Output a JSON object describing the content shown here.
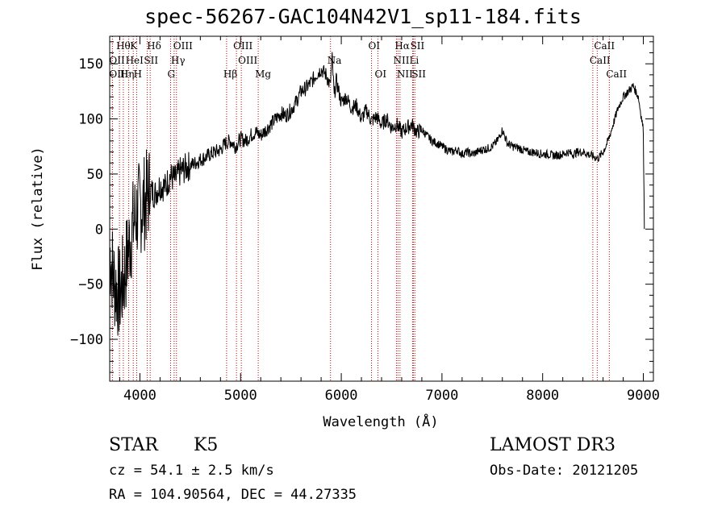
{
  "chart_data": {
    "type": "line",
    "title": "spec-56267-GAC104N42V1_sp11-184.fits",
    "xlabel": "Wavelength (Å)",
    "ylabel": "Flux (relative)",
    "xlim": [
      3700,
      9100
    ],
    "ylim": [
      -138,
      175
    ],
    "xticks": [
      4000,
      5000,
      6000,
      7000,
      8000,
      9000
    ],
    "yticks": [
      -100,
      -50,
      0,
      50,
      100,
      150
    ],
    "series": [
      {
        "name": "flux",
        "x": [
          3700,
          3750,
          3800,
          3850,
          3900,
          3950,
          4000,
          4050,
          4100,
          4150,
          4200,
          4250,
          4300,
          4350,
          4400,
          4450,
          4500,
          4550,
          4600,
          4650,
          4700,
          4750,
          4800,
          4850,
          4900,
          4950,
          5000,
          5050,
          5100,
          5150,
          5200,
          5250,
          5300,
          5350,
          5400,
          5450,
          5500,
          5550,
          5600,
          5650,
          5700,
          5750,
          5800,
          5850,
          5890,
          5910,
          5930,
          5950,
          6000,
          6050,
          6100,
          6150,
          6200,
          6250,
          6300,
          6350,
          6400,
          6450,
          6500,
          6550,
          6600,
          6650,
          6700,
          6750,
          6800,
          6850,
          6900,
          6950,
          7000,
          7050,
          7100,
          7150,
          7200,
          7250,
          7300,
          7350,
          7400,
          7450,
          7500,
          7550,
          7600,
          7650,
          7700,
          7750,
          7800,
          7850,
          7900,
          7950,
          8000,
          8050,
          8100,
          8150,
          8200,
          8250,
          8300,
          8350,
          8400,
          8450,
          8500,
          8550,
          8600,
          8650,
          8700,
          8750,
          8800,
          8850,
          8900,
          8950,
          9000,
          9010
        ],
        "y": [
          -20,
          -50,
          -60,
          -40,
          -10,
          10,
          20,
          25,
          35,
          32,
          40,
          38,
          48,
          45,
          52,
          55,
          58,
          60,
          63,
          65,
          68,
          70,
          72,
          78,
          80,
          75,
          82,
          80,
          85,
          88,
          85,
          90,
          95,
          100,
          105,
          103,
          108,
          115,
          125,
          128,
          133,
          140,
          145,
          140,
          130,
          155,
          120,
          135,
          115,
          120,
          110,
          112,
          100,
          108,
          98,
          102,
          95,
          100,
          92,
          95,
          88,
          92,
          95,
          88,
          90,
          85,
          80,
          78,
          75,
          72,
          70,
          72,
          68,
          70,
          68,
          70,
          72,
          73,
          75,
          80,
          90,
          78,
          75,
          74,
          72,
          70,
          70,
          69,
          68,
          68,
          67,
          67,
          68,
          70,
          68,
          70,
          70,
          68,
          66,
          64,
          70,
          80,
          95,
          110,
          120,
          125,
          130,
          120,
          90,
          0
        ]
      }
    ],
    "lines": [
      {
        "label": "Hθ",
        "x": 3797,
        "row": 0
      },
      {
        "label": "K",
        "x": 3934,
        "row": 0
      },
      {
        "label": "Hδ",
        "x": 4102,
        "row": 0
      },
      {
        "label": "OIII",
        "x": 4363,
        "row": 0
      },
      {
        "label": "OIII",
        "x": 4959,
        "row": 0
      },
      {
        "label": "OI",
        "x": 6300,
        "row": 0
      },
      {
        "label": "Hα",
        "x": 6563,
        "row": 0
      },
      {
        "label": "SII",
        "x": 6717,
        "row": 0
      },
      {
        "label": "CaII",
        "x": 8542,
        "row": 0
      },
      {
        "label": "OII",
        "x": 3727,
        "row": 1
      },
      {
        "label": "HeI",
        "x": 3889,
        "row": 1
      },
      {
        "label": "SII",
        "x": 4072,
        "row": 1
      },
      {
        "label": "Hγ",
        "x": 4340,
        "row": 1
      },
      {
        "label": "OIII",
        "x": 5007,
        "row": 1
      },
      {
        "label": "Na",
        "x": 5893,
        "row": 1
      },
      {
        "label": "NII",
        "x": 6548,
        "row": 1
      },
      {
        "label": "Li",
        "x": 6708,
        "row": 1
      },
      {
        "label": "CaII",
        "x": 8498,
        "row": 1
      },
      {
        "label": "OIII",
        "x": 3727,
        "row": 2
      },
      {
        "label": "Hη",
        "x": 3835,
        "row": 2
      },
      {
        "label": "H",
        "x": 3968,
        "row": 2
      },
      {
        "label": "G",
        "x": 4305,
        "row": 2
      },
      {
        "label": "Hβ",
        "x": 4861,
        "row": 2
      },
      {
        "label": "Mg",
        "x": 5175,
        "row": 2
      },
      {
        "label": "OI",
        "x": 6364,
        "row": 2
      },
      {
        "label": "NII",
        "x": 6583,
        "row": 2
      },
      {
        "label": "SII",
        "x": 6731,
        "row": 2
      },
      {
        "label": "CaII",
        "x": 8662,
        "row": 2
      }
    ]
  },
  "info": {
    "class_label": "STAR",
    "subclass": "K5",
    "survey": "LAMOST DR3",
    "velocity": "cz = 54.1 ± 2.5 km/s",
    "obs_date": "Obs-Date: 20121205",
    "coords": "RA = 104.90564, DEC =  44.27335"
  },
  "colors": {
    "axis": "#000000",
    "spectrum": "#000000",
    "line_marker": "#cc0000",
    "background": "#ffffff"
  }
}
